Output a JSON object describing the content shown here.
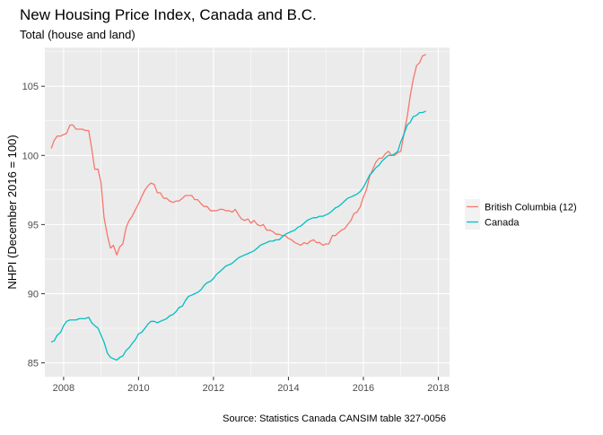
{
  "chart_data": {
    "type": "line",
    "title": "New Housing Price Index, Canada and B.C.",
    "subtitle": "Total (house and land)",
    "xlabel": "",
    "ylabel": "NHPI (December 2016 = 100)",
    "caption": "Source: Statistics Canada CANSIM table 327-0056",
    "xlim": [
      2007.5,
      2018.3
    ],
    "ylim": [
      84.0,
      107.8
    ],
    "x_ticks": [
      2008,
      2010,
      2012,
      2014,
      2016,
      2018
    ],
    "x_tick_labels": [
      "2008",
      "2010",
      "2012",
      "2014",
      "2016",
      "2018"
    ],
    "y_ticks": [
      85,
      90,
      95,
      100,
      105
    ],
    "y_tick_labels": [
      "85",
      "90",
      "95",
      "100",
      "105"
    ],
    "grid": true,
    "legend_position": "right",
    "series": [
      {
        "name": "British Columbia (12)",
        "color": "#F8766D",
        "x": [
          2007.67,
          2007.75,
          2007.83,
          2007.92,
          2008.0,
          2008.08,
          2008.17,
          2008.25,
          2008.33,
          2008.42,
          2008.5,
          2008.58,
          2008.67,
          2008.75,
          2008.83,
          2008.92,
          2009.0,
          2009.08,
          2009.17,
          2009.25,
          2009.33,
          2009.42,
          2009.5,
          2009.58,
          2009.67,
          2009.75,
          2009.83,
          2009.92,
          2010.0,
          2010.08,
          2010.17,
          2010.25,
          2010.33,
          2010.42,
          2010.5,
          2010.58,
          2010.67,
          2010.75,
          2010.83,
          2010.92,
          2011.0,
          2011.08,
          2011.17,
          2011.25,
          2011.33,
          2011.42,
          2011.5,
          2011.58,
          2011.67,
          2011.75,
          2011.83,
          2011.92,
          2012.0,
          2012.08,
          2012.17,
          2012.25,
          2012.33,
          2012.42,
          2012.5,
          2012.58,
          2012.67,
          2012.75,
          2012.83,
          2012.92,
          2013.0,
          2013.08,
          2013.17,
          2013.25,
          2013.33,
          2013.42,
          2013.5,
          2013.58,
          2013.67,
          2013.75,
          2013.83,
          2013.92,
          2014.0,
          2014.08,
          2014.17,
          2014.25,
          2014.33,
          2014.42,
          2014.5,
          2014.58,
          2014.67,
          2014.75,
          2014.83,
          2014.92,
          2015.0,
          2015.08,
          2015.17,
          2015.25,
          2015.33,
          2015.42,
          2015.5,
          2015.58,
          2015.67,
          2015.75,
          2015.83,
          2015.92,
          2016.0,
          2016.08,
          2016.17,
          2016.25,
          2016.33,
          2016.42,
          2016.5,
          2016.58,
          2016.67,
          2016.75,
          2016.83,
          2016.92,
          2017.0,
          2017.08,
          2017.17,
          2017.25,
          2017.33,
          2017.42,
          2017.5,
          2017.58,
          2017.67
        ],
        "values": [
          100.5,
          101.1,
          101.4,
          101.4,
          101.5,
          101.6,
          102.2,
          102.2,
          101.9,
          101.9,
          101.9,
          101.8,
          101.8,
          100.5,
          99.0,
          99.0,
          98.0,
          95.5,
          94.2,
          93.3,
          93.5,
          92.8,
          93.4,
          93.6,
          94.8,
          95.3,
          95.6,
          96.1,
          96.5,
          97.0,
          97.5,
          97.8,
          98.0,
          97.9,
          97.3,
          97.3,
          96.9,
          96.9,
          96.7,
          96.6,
          96.7,
          96.7,
          96.9,
          97.1,
          97.1,
          97.1,
          96.8,
          96.8,
          96.5,
          96.3,
          96.3,
          96.0,
          96.0,
          96.0,
          96.1,
          96.1,
          96.0,
          96.0,
          95.9,
          96.1,
          95.7,
          95.4,
          95.3,
          95.4,
          95.1,
          95.3,
          95.0,
          94.9,
          95.0,
          94.6,
          94.6,
          94.5,
          94.3,
          94.3,
          94.2,
          94.2,
          94.0,
          93.9,
          93.7,
          93.6,
          93.5,
          93.7,
          93.6,
          93.8,
          93.9,
          93.7,
          93.7,
          93.5,
          93.6,
          93.6,
          94.2,
          94.2,
          94.4,
          94.6,
          94.7,
          95.0,
          95.3,
          95.8,
          95.9,
          96.3,
          97.0,
          97.5,
          98.5,
          99.0,
          99.5,
          99.8,
          99.8,
          100.1,
          100.3,
          100.0,
          100.0,
          100.2,
          100.3,
          101.5,
          102.8,
          104.3,
          105.5,
          106.5,
          106.7,
          107.2,
          107.3
        ]
      },
      {
        "name": "Canada",
        "color": "#00BFC4",
        "x": [
          2007.67,
          2007.75,
          2007.83,
          2007.92,
          2008.0,
          2008.08,
          2008.17,
          2008.25,
          2008.33,
          2008.42,
          2008.5,
          2008.58,
          2008.67,
          2008.75,
          2008.83,
          2008.92,
          2009.0,
          2009.08,
          2009.17,
          2009.25,
          2009.33,
          2009.42,
          2009.5,
          2009.58,
          2009.67,
          2009.75,
          2009.83,
          2009.92,
          2010.0,
          2010.08,
          2010.17,
          2010.25,
          2010.33,
          2010.42,
          2010.5,
          2010.58,
          2010.67,
          2010.75,
          2010.83,
          2010.92,
          2011.0,
          2011.08,
          2011.17,
          2011.25,
          2011.33,
          2011.42,
          2011.5,
          2011.58,
          2011.67,
          2011.75,
          2011.83,
          2011.92,
          2012.0,
          2012.08,
          2012.17,
          2012.25,
          2012.33,
          2012.42,
          2012.5,
          2012.58,
          2012.67,
          2012.75,
          2012.83,
          2012.92,
          2013.0,
          2013.08,
          2013.17,
          2013.25,
          2013.33,
          2013.42,
          2013.5,
          2013.58,
          2013.67,
          2013.75,
          2013.83,
          2013.92,
          2014.0,
          2014.08,
          2014.17,
          2014.25,
          2014.33,
          2014.42,
          2014.5,
          2014.58,
          2014.67,
          2014.75,
          2014.83,
          2014.92,
          2015.0,
          2015.08,
          2015.17,
          2015.25,
          2015.33,
          2015.42,
          2015.5,
          2015.58,
          2015.67,
          2015.75,
          2015.83,
          2015.92,
          2016.0,
          2016.08,
          2016.17,
          2016.25,
          2016.33,
          2016.42,
          2016.5,
          2016.58,
          2016.67,
          2016.75,
          2016.83,
          2016.92,
          2017.0,
          2017.08,
          2017.17,
          2017.25,
          2017.33,
          2017.42,
          2017.5,
          2017.58,
          2017.67
        ],
        "values": [
          86.5,
          86.6,
          87.0,
          87.2,
          87.7,
          88.0,
          88.1,
          88.1,
          88.1,
          88.2,
          88.2,
          88.2,
          88.3,
          87.9,
          87.7,
          87.5,
          87.0,
          86.5,
          85.7,
          85.4,
          85.3,
          85.2,
          85.4,
          85.5,
          85.9,
          86.1,
          86.4,
          86.7,
          87.1,
          87.2,
          87.5,
          87.8,
          88.0,
          88.0,
          87.9,
          88.0,
          88.1,
          88.2,
          88.4,
          88.5,
          88.7,
          89.0,
          89.1,
          89.5,
          89.8,
          89.9,
          90.0,
          90.1,
          90.3,
          90.6,
          90.8,
          90.9,
          91.1,
          91.4,
          91.6,
          91.8,
          92.0,
          92.1,
          92.2,
          92.4,
          92.6,
          92.7,
          92.8,
          92.9,
          93.0,
          93.1,
          93.3,
          93.5,
          93.6,
          93.7,
          93.8,
          93.8,
          93.9,
          93.9,
          94.1,
          94.3,
          94.4,
          94.5,
          94.6,
          94.8,
          94.9,
          95.1,
          95.3,
          95.4,
          95.5,
          95.5,
          95.6,
          95.6,
          95.7,
          95.8,
          96.0,
          96.2,
          96.3,
          96.5,
          96.7,
          96.9,
          97.0,
          97.1,
          97.2,
          97.4,
          97.7,
          98.1,
          98.6,
          98.8,
          99.1,
          99.3,
          99.6,
          99.8,
          100.0,
          100.0,
          100.1,
          100.3,
          101.0,
          101.5,
          102.2,
          102.4,
          102.8,
          102.9,
          103.1,
          103.1,
          103.2
        ]
      }
    ]
  }
}
